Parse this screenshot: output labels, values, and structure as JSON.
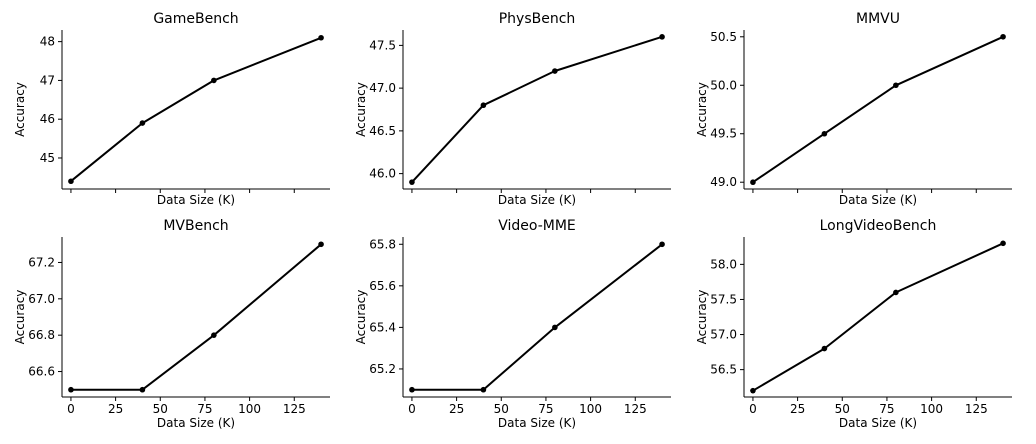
{
  "chart_data": [
    {
      "type": "line",
      "title": "GameBench",
      "xlabel": "Data Size (K)",
      "ylabel": "Accuracy",
      "x": [
        0,
        40,
        80,
        140
      ],
      "y": [
        44.4,
        45.9,
        47.0,
        48.1
      ],
      "xlim": [
        -5,
        145
      ],
      "ylim": [
        44.2,
        48.3
      ],
      "xticks": [
        0,
        25,
        50,
        75,
        100,
        125
      ],
      "xtick_labels_visible": false,
      "yticks": [
        45,
        46,
        47,
        48
      ],
      "ytick_labels": [
        "45",
        "46",
        "47",
        "48"
      ],
      "color": "#000000",
      "grid": false
    },
    {
      "type": "line",
      "title": "PhysBench",
      "xlabel": "Data Size (K)",
      "ylabel": "Accuracy",
      "x": [
        0,
        40,
        80,
        140
      ],
      "y": [
        45.9,
        46.8,
        47.2,
        47.6
      ],
      "xlim": [
        -5,
        145
      ],
      "ylim": [
        45.82,
        47.68
      ],
      "xticks": [
        0,
        25,
        50,
        75,
        100,
        125
      ],
      "xtick_labels_visible": false,
      "yticks": [
        46.0,
        46.5,
        47.0,
        47.5
      ],
      "ytick_labels": [
        "46.0",
        "46.5",
        "47.0",
        "47.5"
      ],
      "color": "#000000",
      "grid": false
    },
    {
      "type": "line",
      "title": "MMVU",
      "xlabel": "Data Size (K)",
      "ylabel": "Accuracy",
      "x": [
        0,
        40,
        80,
        140
      ],
      "y": [
        49.0,
        49.5,
        50.0,
        50.5
      ],
      "xlim": [
        -5,
        145
      ],
      "ylim": [
        48.93,
        50.57
      ],
      "xticks": [
        0,
        25,
        50,
        75,
        100,
        125
      ],
      "xtick_labels_visible": false,
      "yticks": [
        49.0,
        49.5,
        50.0,
        50.5
      ],
      "ytick_labels": [
        "49.0",
        "49.5",
        "50.0",
        "50.5"
      ],
      "color": "#000000",
      "grid": false
    },
    {
      "type": "line",
      "title": "MVBench",
      "xlabel": "Data Size (K)",
      "ylabel": "Accuracy",
      "x": [
        0,
        40,
        80,
        140
      ],
      "y": [
        66.5,
        66.5,
        66.8,
        67.3
      ],
      "xlim": [
        -5,
        145
      ],
      "ylim": [
        66.46,
        67.34
      ],
      "xticks": [
        0,
        25,
        50,
        75,
        100,
        125
      ],
      "xtick_labels_visible": true,
      "xtick_labels": [
        "0",
        "25",
        "50",
        "75",
        "100",
        "125"
      ],
      "yticks": [
        66.6,
        66.8,
        67.0,
        67.2
      ],
      "ytick_labels": [
        "66.6",
        "66.8",
        "67.0",
        "67.2"
      ],
      "color": "#000000",
      "grid": false
    },
    {
      "type": "line",
      "title": "Video-MME",
      "xlabel": "Data Size (K)",
      "ylabel": "Accuracy",
      "x": [
        0,
        40,
        80,
        140
      ],
      "y": [
        65.1,
        65.1,
        65.4,
        65.8
      ],
      "xlim": [
        -5,
        145
      ],
      "ylim": [
        65.065,
        65.835
      ],
      "xticks": [
        0,
        25,
        50,
        75,
        100,
        125
      ],
      "xtick_labels_visible": true,
      "xtick_labels": [
        "0",
        "25",
        "50",
        "75",
        "100",
        "125"
      ],
      "yticks": [
        65.2,
        65.4,
        65.6,
        65.8
      ],
      "ytick_labels": [
        "65.2",
        "65.4",
        "65.6",
        "65.8"
      ],
      "color": "#000000",
      "grid": false
    },
    {
      "type": "line",
      "title": "LongVideoBench",
      "xlabel": "Data Size (K)",
      "ylabel": "Accuracy",
      "x": [
        0,
        40,
        80,
        140
      ],
      "y": [
        56.2,
        56.8,
        57.6,
        58.3
      ],
      "xlim": [
        -5,
        145
      ],
      "ylim": [
        56.11,
        58.39
      ],
      "xticks": [
        0,
        25,
        50,
        75,
        100,
        125
      ],
      "xtick_labels_visible": true,
      "xtick_labels": [
        "0",
        "25",
        "50",
        "75",
        "100",
        "125"
      ],
      "yticks": [
        56.5,
        57.0,
        57.5,
        58.0
      ],
      "ytick_labels": [
        "56.5",
        "57.0",
        "57.5",
        "58.0"
      ],
      "color": "#000000",
      "grid": false
    }
  ]
}
